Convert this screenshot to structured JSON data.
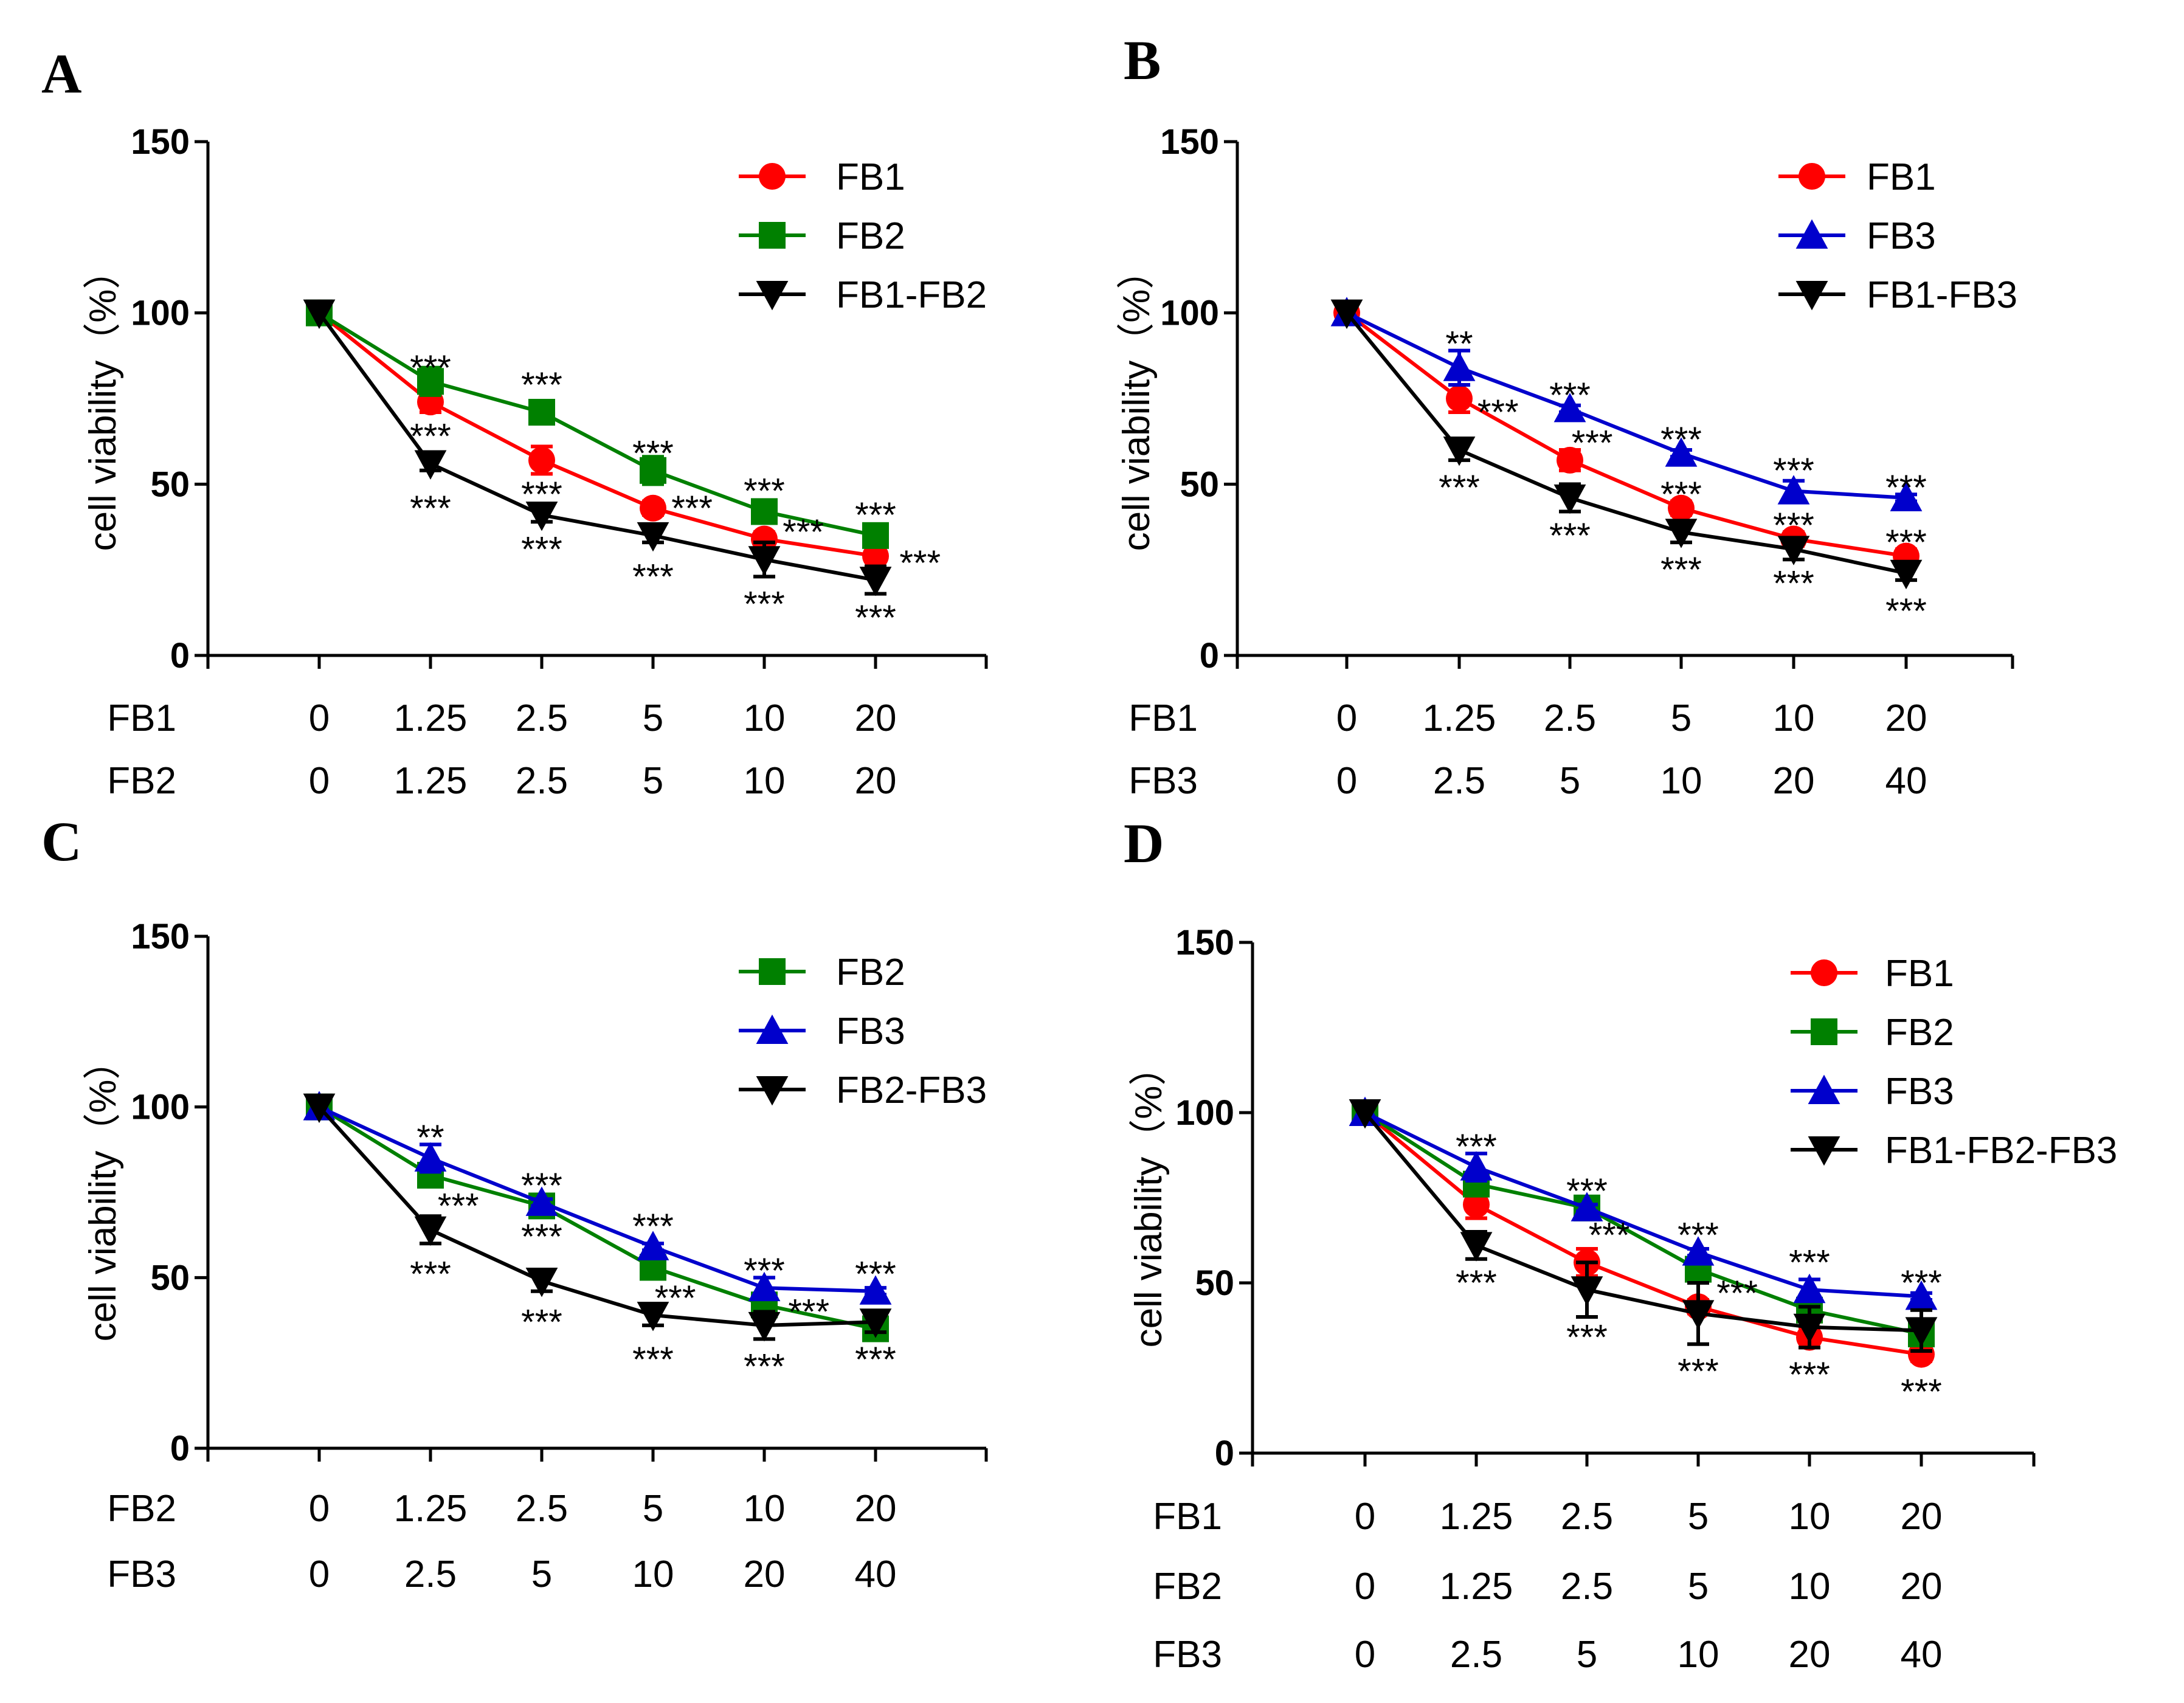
{
  "chart_data": [
    {
      "type": "line",
      "panel": "A",
      "ylabel": "cell viability（%）",
      "ylim": [
        0,
        150
      ],
      "yticks": [
        0,
        50,
        100,
        150
      ],
      "dose_rows": [
        {
          "label": "FB1",
          "values": [
            "0",
            "1.25",
            "2.5",
            "5",
            "10",
            "20"
          ]
        },
        {
          "label": "FB2",
          "values": [
            "0",
            "1.25",
            "2.5",
            "5",
            "10",
            "20"
          ]
        }
      ],
      "series": [
        {
          "name": "FB1",
          "color": "#ff0000",
          "marker": "circle",
          "values": [
            100,
            74,
            57,
            43,
            34,
            29
          ],
          "errors": [
            0,
            3,
            4,
            2,
            2,
            3
          ]
        },
        {
          "name": "FB2",
          "color": "#008000",
          "marker": "square",
          "values": [
            100,
            80,
            71,
            54,
            42,
            35
          ],
          "errors": [
            0,
            4,
            2,
            4,
            2,
            2
          ]
        },
        {
          "name": "FB1-FB2",
          "color": "#000000",
          "marker": "triangle-down",
          "values": [
            100,
            56,
            41,
            35,
            28,
            22
          ],
          "errors": [
            0,
            2,
            2,
            2,
            5,
            4
          ]
        }
      ],
      "annotations": [
        {
          "text": "***",
          "x": 1,
          "y": 84,
          "align": "center"
        },
        {
          "text": "***",
          "x": 1,
          "y": 64,
          "align": "center"
        },
        {
          "text": "***",
          "x": 1,
          "y": 43,
          "align": "center"
        },
        {
          "text": "***",
          "x": 2,
          "y": 79,
          "align": "center"
        },
        {
          "text": "***",
          "x": 2,
          "y": 47,
          "align": "center"
        },
        {
          "text": "***",
          "x": 2,
          "y": 31,
          "align": "center"
        },
        {
          "text": "***",
          "x": 3,
          "y": 59,
          "align": "center"
        },
        {
          "text": "***",
          "x": 3.35,
          "y": 43,
          "align": "center"
        },
        {
          "text": "***",
          "x": 3,
          "y": 23,
          "align": "center"
        },
        {
          "text": "***",
          "x": 4,
          "y": 48,
          "align": "center"
        },
        {
          "text": "***",
          "x": 4.35,
          "y": 36,
          "align": "center"
        },
        {
          "text": "***",
          "x": 4,
          "y": 15,
          "align": "center"
        },
        {
          "text": "***",
          "x": 5,
          "y": 41,
          "align": "center"
        },
        {
          "text": "***",
          "x": 5.4,
          "y": 27,
          "align": "center"
        },
        {
          "text": "***",
          "x": 5,
          "y": 11,
          "align": "center"
        }
      ]
    },
    {
      "type": "line",
      "panel": "B",
      "ylabel": "cell viability（%）",
      "ylim": [
        0,
        150
      ],
      "yticks": [
        0,
        50,
        100,
        150
      ],
      "dose_rows": [
        {
          "label": "FB1",
          "values": [
            "0",
            "1.25",
            "2.5",
            "5",
            "10",
            "20"
          ]
        },
        {
          "label": "FB3",
          "values": [
            "0",
            "2.5",
            "5",
            "10",
            "20",
            "40"
          ]
        }
      ],
      "series": [
        {
          "name": "FB1",
          "color": "#ff0000",
          "marker": "circle",
          "values": [
            100,
            75,
            57,
            43,
            34,
            29
          ],
          "errors": [
            0,
            4,
            3,
            2,
            2,
            2
          ]
        },
        {
          "name": "FB3",
          "color": "#0000cc",
          "marker": "triangle-up",
          "values": [
            100,
            84,
            72,
            59,
            48,
            46
          ],
          "errors": [
            0,
            5,
            1,
            1,
            3,
            1
          ]
        },
        {
          "name": "FB1-FB3",
          "color": "#000000",
          "marker": "triangle-down",
          "values": [
            100,
            60,
            46,
            36,
            31,
            24
          ],
          "errors": [
            0,
            3,
            4,
            3,
            3,
            2
          ]
        }
      ],
      "annotations": [
        {
          "text": "**",
          "x": 1,
          "y": 91,
          "align": "center"
        },
        {
          "text": "***",
          "x": 1.35,
          "y": 71,
          "align": "center"
        },
        {
          "text": "***",
          "x": 1,
          "y": 49,
          "align": "center"
        },
        {
          "text": "***",
          "x": 2,
          "y": 76,
          "align": "center"
        },
        {
          "text": "***",
          "x": 2.2,
          "y": 62,
          "align": "center"
        },
        {
          "text": "***",
          "x": 2,
          "y": 35,
          "align": "center"
        },
        {
          "text": "***",
          "x": 3,
          "y": 63,
          "align": "center"
        },
        {
          "text": "***",
          "x": 3,
          "y": 47,
          "align": "center"
        },
        {
          "text": "***",
          "x": 3,
          "y": 25,
          "align": "center"
        },
        {
          "text": "***",
          "x": 4,
          "y": 54,
          "align": "center"
        },
        {
          "text": "***",
          "x": 4,
          "y": 38,
          "align": "center"
        },
        {
          "text": "***",
          "x": 4,
          "y": 21,
          "align": "center"
        },
        {
          "text": "***",
          "x": 5,
          "y": 49,
          "align": "center"
        },
        {
          "text": "***",
          "x": 5,
          "y": 33,
          "align": "center"
        },
        {
          "text": "***",
          "x": 5,
          "y": 13,
          "align": "center"
        }
      ]
    },
    {
      "type": "line",
      "panel": "C",
      "ylabel": "cell viability（%）",
      "ylim": [
        0,
        150
      ],
      "yticks": [
        0,
        50,
        100,
        150
      ],
      "dose_rows": [
        {
          "label": "FB2",
          "values": [
            "0",
            "1.25",
            "2.5",
            "5",
            "10",
            "20"
          ]
        },
        {
          "label": "FB3",
          "values": [
            "0",
            "2.5",
            "5",
            "10",
            "20",
            "40"
          ]
        }
      ],
      "series": [
        {
          "name": "FB2",
          "color": "#008000",
          "marker": "square",
          "values": [
            100,
            80,
            71,
            53,
            42,
            35
          ],
          "errors": [
            0,
            3,
            2,
            3,
            2,
            2
          ]
        },
        {
          "name": "FB3",
          "color": "#0000cc",
          "marker": "triangle-up",
          "values": [
            100,
            85,
            72,
            59,
            47,
            46
          ],
          "errors": [
            0,
            4,
            1,
            1,
            3,
            1
          ]
        },
        {
          "name": "FB2-FB3",
          "color": "#000000",
          "marker": "triangle-down",
          "values": [
            100,
            64,
            49,
            39,
            36,
            37
          ],
          "errors": [
            0,
            4,
            3,
            3,
            4,
            3
          ]
        }
      ],
      "annotations": [
        {
          "text": "**",
          "x": 1,
          "y": 91,
          "align": "center"
        },
        {
          "text": "***",
          "x": 1.25,
          "y": 71,
          "align": "center"
        },
        {
          "text": "***",
          "x": 1,
          "y": 51,
          "align": "center"
        },
        {
          "text": "***",
          "x": 2,
          "y": 77,
          "align": "center"
        },
        {
          "text": "***",
          "x": 2,
          "y": 62,
          "align": "center"
        },
        {
          "text": "***",
          "x": 2,
          "y": 37,
          "align": "center"
        },
        {
          "text": "***",
          "x": 3,
          "y": 65,
          "align": "center"
        },
        {
          "text": "***",
          "x": 3.2,
          "y": 44,
          "align": "center"
        },
        {
          "text": "***",
          "x": 3,
          "y": 26,
          "align": "center"
        },
        {
          "text": "***",
          "x": 4,
          "y": 52,
          "align": "center"
        },
        {
          "text": "***",
          "x": 4.4,
          "y": 40,
          "align": "center"
        },
        {
          "text": "***",
          "x": 4,
          "y": 24,
          "align": "center"
        },
        {
          "text": "***",
          "x": 5,
          "y": 51,
          "align": "center"
        },
        {
          "text": "***",
          "x": 5,
          "y": 26,
          "align": "center"
        }
      ]
    },
    {
      "type": "line",
      "panel": "D",
      "ylabel": "cell viability（%）",
      "ylim": [
        0,
        150
      ],
      "yticks": [
        0,
        50,
        100,
        150
      ],
      "dose_rows": [
        {
          "label": "FB1",
          "values": [
            "0",
            "1.25",
            "2.5",
            "5",
            "10",
            "20"
          ]
        },
        {
          "label": "FB2",
          "values": [
            "0",
            "1.25",
            "2.5",
            "5",
            "10",
            "20"
          ]
        },
        {
          "label": "FB3",
          "values": [
            "0",
            "2.5",
            "5",
            "10",
            "20",
            "40"
          ]
        }
      ],
      "series": [
        {
          "name": "FB1",
          "color": "#ff0000",
          "marker": "circle",
          "values": [
            100,
            73,
            56,
            43,
            34,
            29
          ],
          "errors": [
            0,
            4,
            4,
            2,
            3,
            2
          ]
        },
        {
          "name": "FB2",
          "color": "#008000",
          "marker": "square",
          "values": [
            100,
            79,
            72,
            54,
            42,
            35
          ],
          "errors": [
            0,
            3,
            2,
            3,
            2,
            2
          ]
        },
        {
          "name": "FB3",
          "color": "#0000cc",
          "marker": "triangle-up",
          "values": [
            100,
            84,
            72,
            59,
            48,
            46
          ],
          "errors": [
            0,
            4,
            1,
            1,
            3,
            1
          ]
        },
        {
          "name": "FB1-FB2-FB3",
          "color": "#000000",
          "marker": "triangle-down",
          "values": [
            100,
            61,
            48,
            41,
            37,
            36
          ],
          "errors": [
            0,
            4,
            8,
            9,
            6,
            6
          ]
        }
      ],
      "annotations": [
        {
          "text": "***",
          "x": 1,
          "y": 90,
          "align": "center"
        },
        {
          "text": "***",
          "x": 1,
          "y": 50,
          "align": "center"
        },
        {
          "text": "***",
          "x": 2,
          "y": 77,
          "align": "center"
        },
        {
          "text": "***",
          "x": 2.2,
          "y": 64,
          "align": "center"
        },
        {
          "text": "***",
          "x": 2,
          "y": 34,
          "align": "center"
        },
        {
          "text": "***",
          "x": 3,
          "y": 64,
          "align": "center"
        },
        {
          "text": "***",
          "x": 3.35,
          "y": 47,
          "align": "center"
        },
        {
          "text": "***",
          "x": 3,
          "y": 24,
          "align": "center"
        },
        {
          "text": "***",
          "x": 4,
          "y": 56,
          "align": "center"
        },
        {
          "text": "***",
          "x": 4,
          "y": 23,
          "align": "center"
        },
        {
          "text": "***",
          "x": 5,
          "y": 50,
          "align": "center"
        },
        {
          "text": "***",
          "x": 5,
          "y": 18,
          "align": "center"
        }
      ]
    }
  ]
}
